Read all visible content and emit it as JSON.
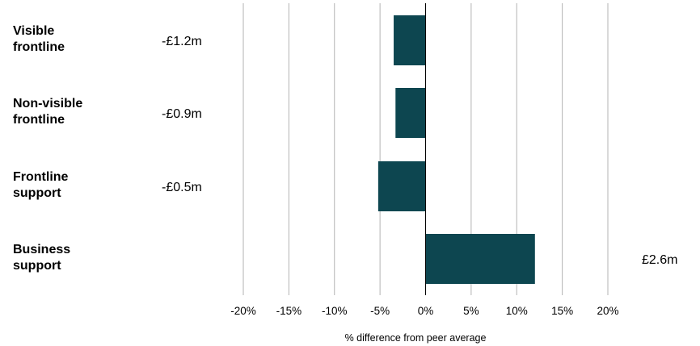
{
  "chart_data": {
    "type": "bar",
    "orientation": "horizontal",
    "categories": [
      [
        "Visible",
        "frontline"
      ],
      [
        "Non-visible",
        "frontline"
      ],
      [
        "Frontline",
        "support"
      ],
      [
        "Business",
        "support"
      ]
    ],
    "values": [
      -3.5,
      -3.3,
      -5.2,
      12.0
    ],
    "value_labels": [
      "-£1.2m",
      "-£0.9m",
      "-£0.5m",
      "£2.6m"
    ],
    "xlabel": "% difference from peer average",
    "xlim": [
      -20,
      20
    ],
    "xticks": [
      -20,
      -15,
      -10,
      -5,
      0,
      5,
      10,
      15,
      20
    ],
    "xtick_labels": [
      "-20%",
      "-15%",
      "-10%",
      "-5%",
      "0%",
      "5%",
      "10%",
      "15%",
      "20%"
    ],
    "grid": "vertical",
    "bar_color": "#0d4650",
    "grid_color": "#b3b3b3",
    "zero_line_color": "#000000"
  }
}
